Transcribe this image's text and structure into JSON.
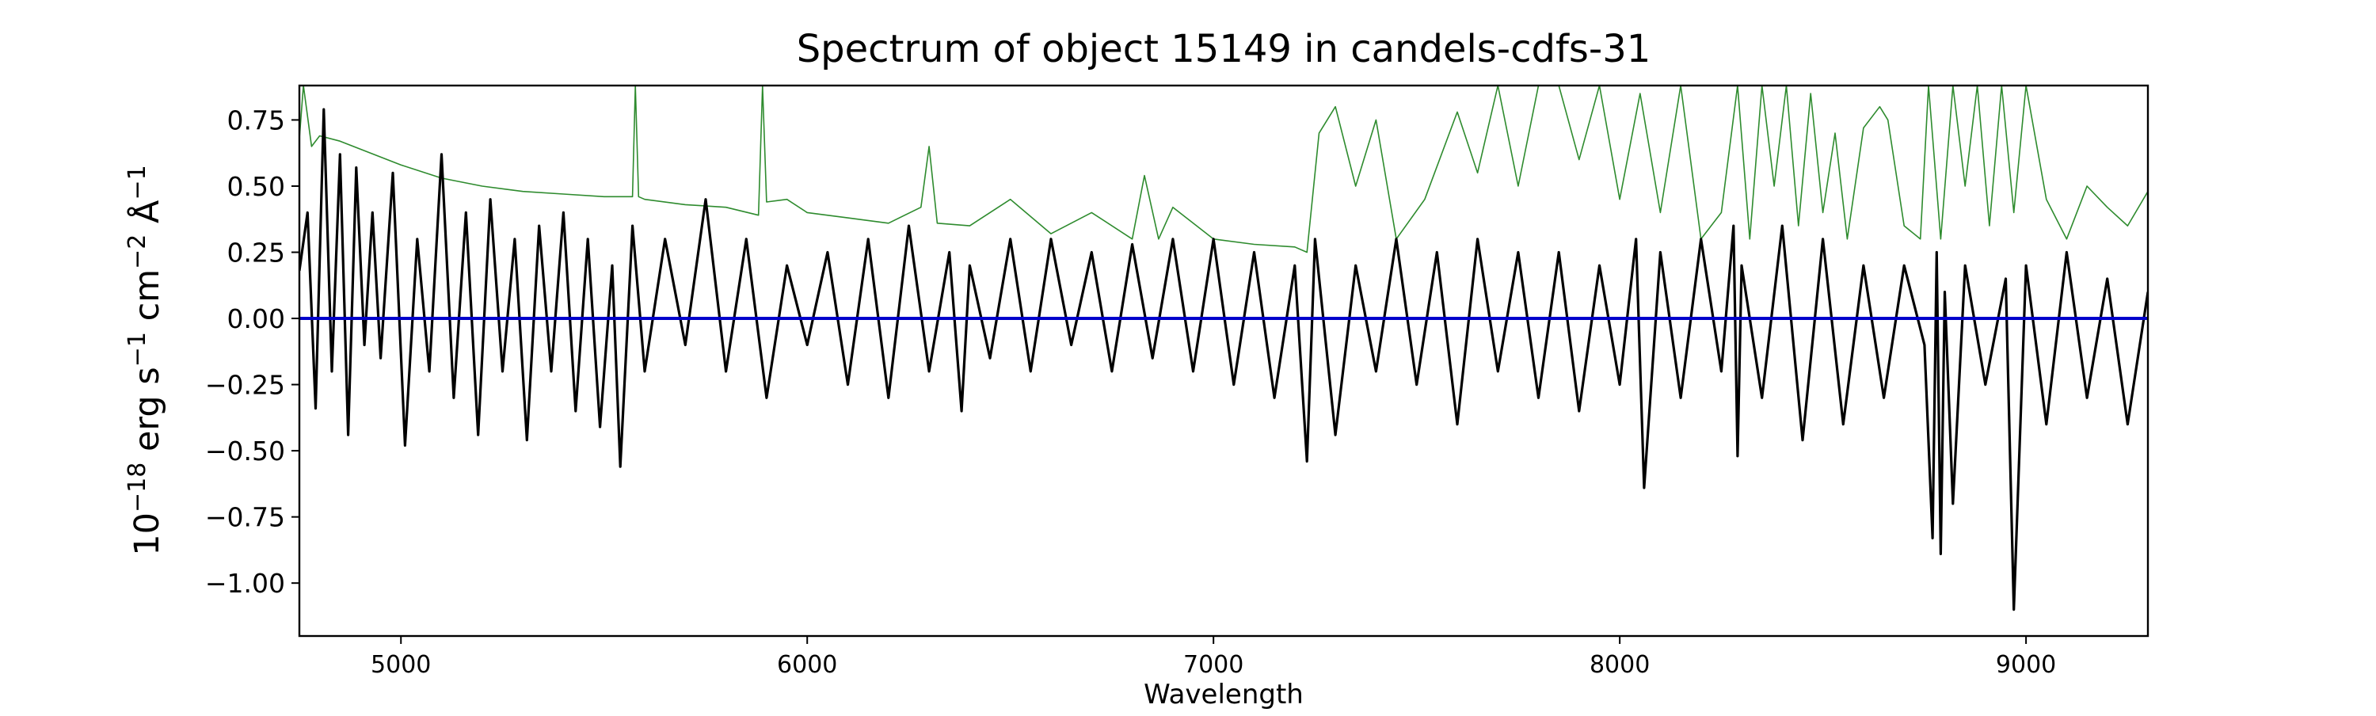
{
  "chart_data": {
    "type": "line",
    "title": "Spectrum of object 15149 in candels-cdfs-31",
    "xlabel": "Wavelength",
    "ylabel": "10^-18 erg s^-1 cm^-2 Å^-1",
    "xlim": [
      4750,
      9300
    ],
    "ylim": [
      -1.2,
      0.88
    ],
    "x_ticks": [
      5000,
      6000,
      7000,
      8000,
      9000
    ],
    "x_tick_labels": [
      "5000",
      "6000",
      "7000",
      "8000",
      "9000"
    ],
    "y_ticks": [
      -1.0,
      -0.75,
      -0.5,
      -0.25,
      0.0,
      0.25,
      0.5,
      0.75
    ],
    "y_tick_labels": [
      "−1.00",
      "−0.75",
      "−0.50",
      "−0.25",
      "0.00",
      "0.25",
      "0.50",
      "0.75"
    ],
    "grid": false,
    "legend": "none",
    "series": [
      {
        "role": "model",
        "color": "#2e8b2e",
        "x": [
          4750,
          4760,
          4780,
          4800,
          4850,
          4900,
          5000,
          5100,
          5200,
          5300,
          5400,
          5500,
          5570,
          5577,
          5585,
          5600,
          5700,
          5800,
          5880,
          5890,
          5900,
          5950,
          6000,
          6100,
          6200,
          6280,
          6300,
          6320,
          6400,
          6500,
          6600,
          6700,
          6800,
          6830,
          6865,
          6900,
          7000,
          7100,
          7200,
          7230,
          7260,
          7300,
          7350,
          7400,
          7450,
          7520,
          7600,
          7650,
          7700,
          7750,
          7800,
          7850,
          7900,
          7950,
          8000,
          8050,
          8100,
          8150,
          8200,
          8250,
          8290,
          8320,
          8350,
          8380,
          8410,
          8440,
          8470,
          8500,
          8530,
          8560,
          8600,
          8640,
          8660,
          8700,
          8740,
          8760,
          8790,
          8820,
          8850,
          8880,
          8910,
          8940,
          8970,
          9000,
          9050,
          9100,
          9150,
          9200,
          9250,
          9300
        ],
        "y": [
          0.68,
          0.88,
          0.65,
          0.69,
          0.67,
          0.64,
          0.58,
          0.53,
          0.5,
          0.48,
          0.47,
          0.46,
          0.46,
          0.88,
          0.46,
          0.45,
          0.43,
          0.42,
          0.39,
          0.88,
          0.44,
          0.45,
          0.4,
          0.38,
          0.36,
          0.42,
          0.65,
          0.36,
          0.35,
          0.45,
          0.32,
          0.4,
          0.3,
          0.54,
          0.3,
          0.42,
          0.3,
          0.28,
          0.27,
          0.25,
          0.7,
          0.8,
          0.5,
          0.75,
          0.3,
          0.45,
          0.78,
          0.55,
          0.88,
          0.5,
          0.88,
          0.88,
          0.6,
          0.88,
          0.45,
          0.85,
          0.4,
          0.88,
          0.3,
          0.4,
          0.88,
          0.3,
          0.88,
          0.5,
          0.88,
          0.35,
          0.85,
          0.4,
          0.7,
          0.3,
          0.72,
          0.8,
          0.75,
          0.35,
          0.3,
          0.88,
          0.3,
          0.88,
          0.5,
          0.88,
          0.35,
          0.88,
          0.4,
          0.88,
          0.45,
          0.3,
          0.5,
          0.42,
          0.35,
          0.48
        ]
      },
      {
        "role": "data",
        "color": "#000000",
        "x": [
          4750,
          4770,
          4790,
          4810,
          4830,
          4850,
          4870,
          4890,
          4910,
          4930,
          4950,
          4980,
          5010,
          5040,
          5070,
          5100,
          5130,
          5160,
          5190,
          5220,
          5250,
          5280,
          5310,
          5340,
          5370,
          5400,
          5430,
          5460,
          5490,
          5520,
          5540,
          5570,
          5600,
          5650,
          5700,
          5750,
          5800,
          5850,
          5900,
          5950,
          6000,
          6050,
          6100,
          6150,
          6200,
          6250,
          6300,
          6350,
          6380,
          6400,
          6450,
          6500,
          6550,
          6600,
          6650,
          6700,
          6750,
          6800,
          6850,
          6900,
          6950,
          7000,
          7050,
          7100,
          7150,
          7200,
          7230,
          7250,
          7300,
          7350,
          7400,
          7450,
          7500,
          7550,
          7600,
          7650,
          7700,
          7750,
          7800,
          7850,
          7900,
          7950,
          8000,
          8040,
          8060,
          8100,
          8150,
          8200,
          8250,
          8280,
          8290,
          8300,
          8350,
          8400,
          8450,
          8500,
          8550,
          8600,
          8650,
          8700,
          8750,
          8770,
          8780,
          8790,
          8800,
          8820,
          8850,
          8900,
          8950,
          8970,
          9000,
          9050,
          9100,
          9150,
          9200,
          9250,
          9300
        ],
        "y": [
          0.18,
          0.4,
          -0.34,
          0.79,
          -0.2,
          0.62,
          -0.44,
          0.57,
          -0.1,
          0.4,
          -0.15,
          0.55,
          -0.48,
          0.3,
          -0.2,
          0.62,
          -0.3,
          0.4,
          -0.44,
          0.45,
          -0.2,
          0.3,
          -0.46,
          0.35,
          -0.2,
          0.4,
          -0.35,
          0.3,
          -0.41,
          0.2,
          -0.56,
          0.35,
          -0.2,
          0.3,
          -0.1,
          0.45,
          -0.2,
          0.3,
          -0.3,
          0.2,
          -0.1,
          0.25,
          -0.25,
          0.3,
          -0.3,
          0.35,
          -0.2,
          0.25,
          -0.35,
          0.2,
          -0.15,
          0.3,
          -0.2,
          0.3,
          -0.1,
          0.25,
          -0.2,
          0.28,
          -0.15,
          0.3,
          -0.2,
          0.3,
          -0.25,
          0.25,
          -0.3,
          0.2,
          -0.54,
          0.3,
          -0.44,
          0.2,
          -0.2,
          0.3,
          -0.25,
          0.25,
          -0.4,
          0.3,
          -0.2,
          0.25,
          -0.3,
          0.25,
          -0.35,
          0.2,
          -0.25,
          0.3,
          -0.64,
          0.25,
          -0.3,
          0.3,
          -0.2,
          0.35,
          -0.52,
          0.2,
          -0.3,
          0.35,
          -0.46,
          0.3,
          -0.4,
          0.2,
          -0.3,
          0.2,
          -0.1,
          -0.83,
          0.25,
          -0.89,
          0.1,
          -0.7,
          0.2,
          -0.25,
          0.15,
          -1.1,
          0.2,
          -0.4,
          0.25,
          -0.3,
          0.15,
          -0.4,
          0.1
        ]
      },
      {
        "role": "zero-line",
        "color": "#0000cc",
        "x": [
          4750,
          9300
        ],
        "y": [
          0.0,
          0.0
        ]
      }
    ]
  }
}
